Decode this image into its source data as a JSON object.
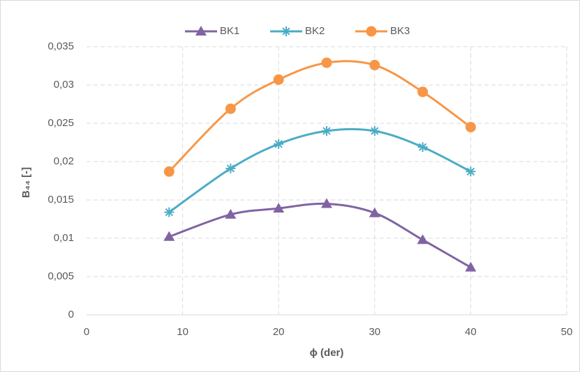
{
  "chart_data": {
    "type": "line",
    "smooth": true,
    "x_label": "ϕ (der)",
    "y_label": "B₄₄ [-]",
    "x": [
      8.6,
      15,
      20,
      25,
      30,
      35,
      40
    ],
    "series": [
      {
        "name": "BK1",
        "color": "#8064a2",
        "marker": "triangle",
        "values": [
          0.0102,
          0.0131,
          0.0139,
          0.0145,
          0.0133,
          0.0098,
          0.0062
        ]
      },
      {
        "name": "BK2",
        "color": "#4bacc6",
        "marker": "asterisk",
        "values": [
          0.0134,
          0.0191,
          0.0223,
          0.024,
          0.024,
          0.0219,
          0.0187
        ]
      },
      {
        "name": "BK3",
        "color": "#f79646",
        "marker": "circle",
        "values": [
          0.0187,
          0.0269,
          0.0307,
          0.0329,
          0.0326,
          0.0291,
          0.0245
        ]
      }
    ],
    "xlim": [
      0,
      50
    ],
    "xticks": [
      0,
      10,
      20,
      30,
      40,
      50
    ],
    "ylim": [
      0,
      0.035
    ],
    "yticks": [
      0,
      {
        "value": 0.005,
        "label": "0,005"
      },
      {
        "value": 0.01,
        "label": "0,01"
      },
      {
        "value": 0.015,
        "label": "0,015"
      },
      {
        "value": 0.02,
        "label": "0,02"
      },
      {
        "value": 0.025,
        "label": "0,025"
      },
      {
        "value": 0.03,
        "label": "0,03"
      },
      {
        "value": 0.035,
        "label": "0,035"
      }
    ],
    "grid": true,
    "legend": "top"
  }
}
